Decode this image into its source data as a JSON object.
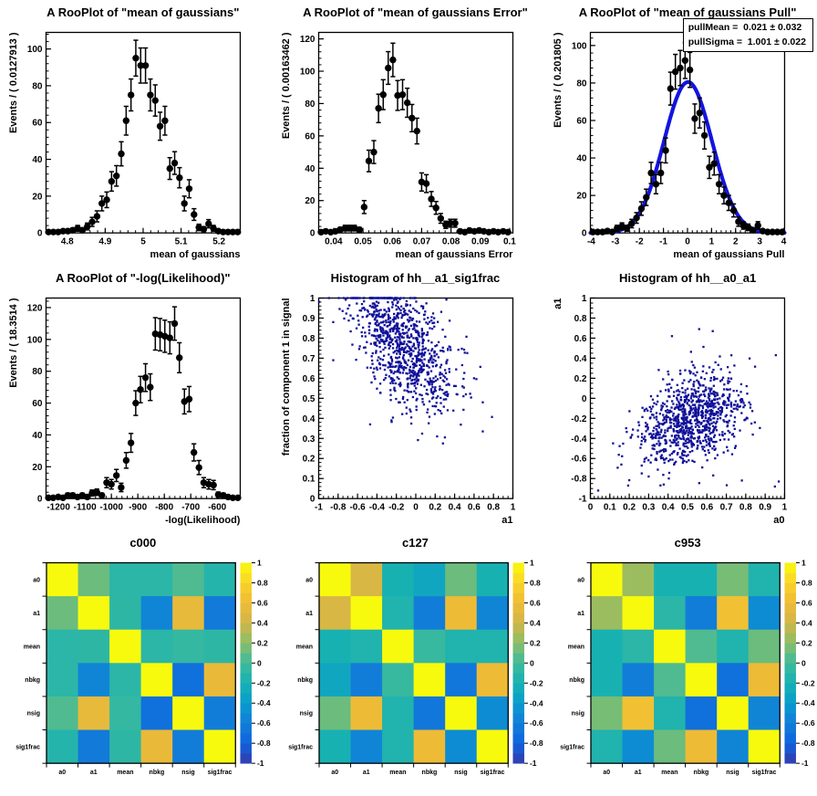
{
  "canvas": {
    "background": "#ffffff",
    "marker_color": "#000000",
    "curve_color": "#1414e0",
    "scatter_color": "#10109a",
    "palette_stops": [
      [
        0,
        "#3539a8"
      ],
      [
        0.1,
        "#0e63e0"
      ],
      [
        0.2,
        "#127dd8"
      ],
      [
        0.3,
        "#089bce"
      ],
      [
        0.4,
        "#18b1b2"
      ],
      [
        0.5,
        "#3dba9d"
      ],
      [
        0.6,
        "#8abe68"
      ],
      [
        0.7,
        "#d0b548"
      ],
      [
        0.8,
        "#eebb36"
      ],
      [
        0.9,
        "#fad32a"
      ],
      [
        1,
        "#f8fa0d"
      ]
    ]
  },
  "chart_data": [
    {
      "name": "rooplot-mean-of-gaussians",
      "type": "errorbar",
      "title": "A RooPlot of \"mean of gaussians\"",
      "x_title": "mean of gaussians",
      "y_title": "Events / ( 0.0127913 )",
      "x_min": 4.744,
      "x_max": 5.256,
      "y_min": 0,
      "y_max": 109,
      "x_ticks": [
        4.8,
        4.9,
        5,
        5.1,
        5.2
      ],
      "x_tick_labels": [
        "4.8",
        "4.9",
        "5",
        "5.1",
        "5.2"
      ],
      "x_minor_div": 5,
      "y_ticks": [
        0,
        20,
        40,
        60,
        80,
        100
      ],
      "y_tick_labels": [
        "0",
        "20",
        "40",
        "60",
        "80",
        "100"
      ],
      "y_minor_div": 5,
      "points_x": [
        4.7505,
        4.7633,
        4.7761,
        4.7889,
        4.8017,
        4.8145,
        4.8273,
        4.84,
        4.8528,
        4.8656,
        4.8784,
        4.8912,
        4.904,
        4.9168,
        4.9296,
        4.9424,
        4.9552,
        4.968,
        4.9807,
        4.9935,
        5.0063,
        5.0191,
        5.0319,
        5.0447,
        5.0575,
        5.0703,
        5.0831,
        5.0959,
        5.1087,
        5.1214,
        5.1342,
        5.147,
        5.1598,
        5.1726,
        5.1854,
        5.1982,
        5.211,
        5.2238,
        5.2366,
        5.2494
      ],
      "points_y": [
        0.5,
        0.5,
        0.5,
        1,
        1,
        1.5,
        2.5,
        1.5,
        3.5,
        6,
        9,
        16,
        18,
        28,
        31,
        43,
        61,
        75,
        95,
        91,
        91,
        75,
        72,
        58,
        61,
        35,
        38,
        30,
        16,
        24,
        10,
        3,
        2,
        5,
        2.5,
        1,
        0.5,
        0.5,
        0.5,
        0.5
      ]
    },
    {
      "name": "rooplot-mean-of-gaussians-error",
      "type": "errorbar",
      "title": "A RooPlot of \"mean of gaussians Error\"",
      "x_title": "mean of gaussians Error",
      "y_title": "Events / ( 0.00163462 )",
      "x_min": 0.0349,
      "x_max": 0.1011,
      "y_min": 0,
      "y_max": 124,
      "x_ticks": [
        0.04,
        0.05,
        0.06,
        0.07,
        0.08,
        0.09,
        0.1
      ],
      "x_tick_labels": [
        "0.04",
        "0.05",
        "0.06",
        "0.07",
        "0.08",
        "0.09",
        "0.1"
      ],
      "x_minor_div": 5,
      "y_ticks": [
        0,
        20,
        40,
        60,
        80,
        100,
        120
      ],
      "y_tick_labels": [
        "0",
        "20",
        "40",
        "60",
        "80",
        "100",
        "120"
      ],
      "y_minor_div": 5,
      "points_x": [
        0.0357,
        0.0373,
        0.039,
        0.0406,
        0.0422,
        0.0439,
        0.0455,
        0.0471,
        0.0488,
        0.0504,
        0.052,
        0.0537,
        0.0553,
        0.0569,
        0.0586,
        0.0602,
        0.0618,
        0.0635,
        0.0651,
        0.0667,
        0.0684,
        0.07,
        0.0716,
        0.0733,
        0.0749,
        0.0765,
        0.0782,
        0.0798,
        0.0814,
        0.0831,
        0.0847,
        0.0863,
        0.088,
        0.0896,
        0.0912,
        0.0929,
        0.0945,
        0.0961,
        0.0978,
        0.0994
      ],
      "points_y": [
        0.5,
        1,
        0.5,
        1,
        2,
        3,
        3,
        3,
        2,
        16,
        44.5,
        50,
        77,
        85.5,
        102,
        107,
        85,
        85.5,
        80.5,
        71,
        63,
        31.5,
        30.5,
        21,
        15.5,
        9,
        5,
        6,
        6,
        1,
        0.5,
        1.5,
        1,
        1.5,
        1,
        0.5,
        1,
        0.5,
        1,
        0.5
      ]
    },
    {
      "name": "rooplot-mean-of-gaussians-pull",
      "type": "errorbar",
      "title": "A RooPlot of \"mean of gaussians Pull\"",
      "x_title": "mean of gaussians Pull",
      "y_title": "Events / ( 0.201805 )",
      "x_min": -4.036,
      "x_max": 4.036,
      "y_min": 0,
      "y_max": 107,
      "x_ticks": [
        -4,
        -3,
        -2,
        -1,
        0,
        1,
        2,
        3,
        4
      ],
      "x_tick_labels": [
        "-4",
        "-3",
        "-2",
        "-1",
        "0",
        "1",
        "2",
        "3",
        "4"
      ],
      "x_minor_div": 5,
      "y_ticks": [
        0,
        20,
        40,
        60,
        80,
        100
      ],
      "y_tick_labels": [
        "0",
        "20",
        "40",
        "60",
        "80",
        "100"
      ],
      "y_minor_div": 5,
      "points_x": [
        -3.935,
        -3.733,
        -3.531,
        -3.329,
        -3.128,
        -2.926,
        -2.724,
        -2.522,
        -2.32,
        -2.118,
        -1.917,
        -1.715,
        -1.513,
        -1.311,
        -1.109,
        -0.908,
        -0.706,
        -0.504,
        -0.302,
        -0.1,
        0.101,
        0.303,
        0.505,
        0.707,
        0.909,
        1.11,
        1.312,
        1.514,
        1.716,
        1.918,
        2.119,
        2.321,
        2.523,
        2.725,
        2.927,
        3.128,
        3.33,
        3.532,
        3.734,
        3.936
      ],
      "points_y": [
        0.5,
        0.5,
        0.5,
        1,
        0.5,
        2.5,
        3.5,
        2.5,
        5,
        8,
        13,
        19,
        32,
        26,
        32,
        44,
        77,
        86,
        88,
        92,
        87,
        61,
        64,
        52,
        35,
        37,
        26,
        20,
        16,
        12,
        6,
        4,
        3,
        1.5,
        4,
        1,
        0.5,
        0.5,
        0.5,
        0.5
      ],
      "curve": {
        "mean": 0.021,
        "sigma": 1.001,
        "amplitude": 80.5
      },
      "stats_lines": [
        "pullMean =  0.021 ± 0.032",
        "pullSigma =  1.001 ± 0.022"
      ]
    },
    {
      "name": "rooplot-neg-log-likelihood",
      "type": "errorbar",
      "title": "A RooPlot of \"-log(Likelihood)\"",
      "x_title": "-log(Likelihood)",
      "y_title": "Events / ( 18.3514 )",
      "x_min": -1247,
      "x_max": -513,
      "y_min": 0,
      "y_max": 126,
      "x_ticks": [
        -1200,
        -1100,
        -1000,
        -900,
        -800,
        -700,
        -600
      ],
      "x_tick_labels": [
        "-1200",
        "-1100",
        "-1000",
        "-900",
        "-800",
        "-700",
        "-600"
      ],
      "x_minor_div": 5,
      "y_ticks": [
        0,
        20,
        40,
        60,
        80,
        100,
        120
      ],
      "y_tick_labels": [
        "0",
        "20",
        "40",
        "60",
        "80",
        "100",
        "120"
      ],
      "y_minor_div": 5,
      "points_x": [
        -1238,
        -1220,
        -1201,
        -1183,
        -1165,
        -1146,
        -1128,
        -1110,
        -1091,
        -1073,
        -1055,
        -1036,
        -1018,
        -1000,
        -981,
        -963,
        -944,
        -926,
        -908,
        -890,
        -871,
        -853,
        -834,
        -816,
        -798,
        -779,
        -761,
        -743,
        -724,
        -706,
        -688,
        -669,
        -651,
        -632,
        -614,
        -596,
        -577,
        -559,
        -541,
        -522
      ],
      "points_y": [
        0.5,
        0.5,
        1,
        0.5,
        2,
        2,
        1,
        2,
        1,
        3.5,
        4,
        2,
        10,
        9,
        14.5,
        7,
        24,
        35,
        60,
        68.5,
        76,
        70,
        103.5,
        103,
        102,
        101,
        110,
        88.5,
        61,
        62.5,
        29,
        19.5,
        10,
        9,
        8.5,
        2.5,
        2,
        1,
        0.5,
        0.5
      ]
    },
    {
      "name": "histogram-hh-a1-sig1frac",
      "type": "scatter",
      "title": "Histogram of hh__a1_sig1frac",
      "x_title": "a1",
      "y_title": "fraction of component 1 in signal",
      "x_min": -1,
      "x_max": 1,
      "y_min": 0,
      "y_max": 1,
      "x_ticks": [
        -1,
        -0.8,
        -0.6,
        -0.4,
        -0.2,
        0,
        0.2,
        0.4,
        0.6,
        0.8,
        1
      ],
      "x_tick_labels": [
        "-1",
        "-0.8",
        "-0.6",
        "-0.4",
        "-0.2",
        "0",
        "0.2",
        "0.4",
        "0.6",
        "0.8",
        "1"
      ],
      "x_minor_div": 4,
      "y_ticks": [
        0,
        0.1,
        0.2,
        0.3,
        0.4,
        0.5,
        0.6,
        0.7,
        0.8,
        0.9,
        1
      ],
      "y_tick_labels": [
        "0",
        "0.1",
        "0.2",
        "0.3",
        "0.4",
        "0.5",
        "0.6",
        "0.7",
        "0.8",
        "0.9",
        "1"
      ],
      "y_minor_div": 5,
      "cloud": {
        "n": 950,
        "seed": 20240,
        "mean_x": -0.12,
        "mean_y": 0.765,
        "sd_x": 0.26,
        "sd_y": 0.155,
        "rho": -0.5,
        "clip_x": [
          -0.995,
          0.995
        ],
        "clip_y_low": 0.02,
        "clip_y_high": 1
      },
      "extra_points": [
        [
          -0.85,
          0.88
        ],
        [
          -0.85,
          0.69
        ],
        [
          0.6,
          0.6
        ],
        [
          0.69,
          0.48
        ],
        [
          0.69,
          0.335
        ],
        [
          0.28,
          0.275
        ],
        [
          0.22,
          0.31
        ],
        [
          0.3,
          0.305
        ],
        [
          -0.47,
          0.37
        ],
        [
          -0.25,
          0.39
        ]
      ]
    },
    {
      "name": "histogram-hh-a0-a1",
      "type": "scatter",
      "title": "Histogram of hh__a0_a1",
      "x_title": "a0",
      "y_title": "a1",
      "x_min": 0,
      "x_max": 1,
      "y_min": -1,
      "y_max": 1,
      "x_ticks": [
        0,
        0.1,
        0.2,
        0.3,
        0.4,
        0.5,
        0.6,
        0.7,
        0.8,
        0.9,
        1
      ],
      "x_tick_labels": [
        "0",
        "0.1",
        "0.2",
        "0.3",
        "0.4",
        "0.5",
        "0.6",
        "0.7",
        "0.8",
        "0.9",
        "1"
      ],
      "x_minor_div": 5,
      "y_ticks": [
        -1,
        -0.8,
        -0.6,
        -0.4,
        -0.2,
        0,
        0.2,
        0.4,
        0.6,
        0.8,
        1
      ],
      "y_tick_labels": [
        "-1",
        "-0.8",
        "-0.6",
        "-0.4",
        "-0.2",
        "0",
        "0.2",
        "0.4",
        "0.6",
        "0.8",
        "1"
      ],
      "y_minor_div": 4,
      "cloud": {
        "n": 950,
        "seed": 77031,
        "mean_x": 0.52,
        "mean_y": -0.2,
        "sd_x": 0.135,
        "sd_y": 0.23,
        "rho": 0.35,
        "clip_x": [
          0.005,
          0.995
        ],
        "clip_y_low": -0.995,
        "clip_y_high": 0.995
      },
      "extra_points": [
        [
          0.04,
          -0.92
        ],
        [
          0.95,
          -0.88
        ],
        [
          0.97,
          -0.83
        ],
        [
          0.955,
          0.43
        ],
        [
          0.56,
          0.69
        ],
        [
          0.63,
          0.67
        ],
        [
          0.42,
          0.62
        ],
        [
          0.3,
          -0.78
        ],
        [
          0.78,
          -0.82
        ]
      ]
    },
    {
      "name": "correlation-matrix-c000",
      "type": "heatmap",
      "title": "c000",
      "labels": [
        "a0",
        "a1",
        "mean",
        "nbkg",
        "nsig",
        "sig1frac"
      ],
      "matrix": [
        [
          1,
          0.12,
          -0.1,
          -0.1,
          0.05,
          -0.13
        ],
        [
          0.12,
          1,
          -0.08,
          -0.55,
          0.55,
          -0.62
        ],
        [
          -0.1,
          -0.08,
          1,
          -0.1,
          -0.05,
          -0.08
        ],
        [
          -0.1,
          -0.55,
          -0.1,
          1,
          -0.7,
          0.57
        ],
        [
          0.05,
          0.55,
          -0.05,
          -0.7,
          1,
          -0.6
        ],
        [
          -0.13,
          -0.62,
          -0.08,
          0.57,
          -0.6,
          1
        ]
      ],
      "colorbar_ticks": [
        "1",
        "0.8",
        "0.6",
        "0.4",
        "0.2",
        "0",
        "-0.2",
        "-0.4",
        "-0.6",
        "-0.8",
        "-1"
      ],
      "colorbar_values": [
        1,
        0.8,
        0.6,
        0.4,
        0.2,
        0,
        -0.2,
        -0.4,
        -0.6,
        -0.8,
        -1
      ]
    },
    {
      "name": "correlation-matrix-c127",
      "type": "heatmap",
      "title": "c127",
      "labels": [
        "a0",
        "a1",
        "mean",
        "nbkg",
        "nsig",
        "sig1frac"
      ],
      "matrix": [
        [
          1,
          0.45,
          -0.2,
          -0.3,
          0.12,
          -0.2
        ],
        [
          0.45,
          1,
          -0.15,
          -0.6,
          0.6,
          -0.55
        ],
        [
          -0.2,
          -0.15,
          1,
          -0.03,
          -0.15,
          -0.15
        ],
        [
          -0.3,
          -0.6,
          -0.03,
          1,
          -0.65,
          0.6
        ],
        [
          0.12,
          0.6,
          -0.15,
          -0.65,
          1,
          -0.5
        ],
        [
          -0.2,
          -0.55,
          -0.15,
          0.6,
          -0.5,
          1
        ]
      ],
      "colorbar_ticks": [
        "1",
        "0.8",
        "0.6",
        "0.4",
        "0.2",
        "0",
        "-0.2",
        "-0.4",
        "-0.6",
        "-0.8",
        "-1"
      ],
      "colorbar_values": [
        1,
        0.8,
        0.6,
        0.4,
        0.2,
        0,
        -0.2,
        -0.4,
        -0.6,
        -0.8,
        -1
      ]
    },
    {
      "name": "correlation-matrix-c953",
      "type": "heatmap",
      "title": "c953",
      "labels": [
        "a0",
        "a1",
        "mean",
        "nbkg",
        "nsig",
        "sig1frac"
      ],
      "matrix": [
        [
          1,
          0.25,
          -0.2,
          -0.2,
          0.15,
          -0.15
        ],
        [
          0.25,
          1,
          -0.1,
          -0.6,
          0.65,
          -0.5
        ],
        [
          -0.2,
          -0.1,
          1,
          0.05,
          -0.15,
          0.12
        ],
        [
          -0.2,
          -0.6,
          0.05,
          1,
          -0.7,
          0.6
        ],
        [
          0.15,
          0.65,
          -0.15,
          -0.7,
          1,
          -0.55
        ],
        [
          -0.15,
          -0.5,
          0.12,
          0.6,
          -0.55,
          1
        ]
      ],
      "colorbar_ticks": [
        "1",
        "0.8",
        "0.6",
        "0.4",
        "0.2",
        "0",
        "-0.2",
        "-0.4",
        "-0.6",
        "-0.8",
        "-1"
      ],
      "colorbar_values": [
        1,
        0.8,
        0.6,
        0.4,
        0.2,
        0,
        -0.2,
        -0.4,
        -0.6,
        -0.8,
        -1
      ]
    }
  ]
}
